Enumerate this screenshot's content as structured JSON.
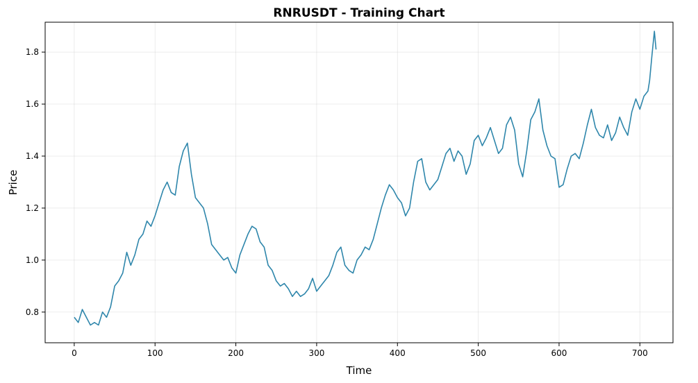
{
  "chart_data": {
    "type": "line",
    "title": "RNRUSDT - Training Chart",
    "xlabel": "Time",
    "ylabel": "Price",
    "xlim": [
      -36,
      741
    ],
    "ylim": [
      0.682,
      1.915
    ],
    "xticks": [
      0,
      100,
      200,
      300,
      400,
      500,
      600,
      700
    ],
    "yticks": [
      0.8,
      1.0,
      1.2,
      1.4,
      1.6,
      1.8
    ],
    "ytick_labels": [
      "0.8",
      "1.0",
      "1.2",
      "1.4",
      "1.6",
      "1.8"
    ],
    "grid": true,
    "line_color": "#2e86ab",
    "series": [
      {
        "x": [
          0,
          5,
          10,
          15,
          20,
          25,
          30,
          35,
          40,
          45,
          50,
          55,
          60,
          65,
          70,
          75,
          80,
          85,
          90,
          95,
          100,
          105,
          110,
          115,
          120,
          125,
          130,
          135,
          140,
          145,
          150,
          155,
          160,
          165,
          170,
          175,
          180,
          185,
          190,
          195,
          200,
          205,
          210,
          215,
          220,
          225,
          230,
          235,
          240,
          245,
          250,
          255,
          260,
          265,
          270,
          275,
          280,
          285,
          290,
          295,
          300,
          305,
          310,
          315,
          320,
          325,
          330,
          335,
          340,
          345,
          350,
          355,
          360,
          365,
          370,
          375,
          380,
          385,
          390,
          395,
          400,
          405,
          410,
          415,
          420,
          425,
          430,
          435,
          440,
          445,
          450,
          455,
          460,
          465,
          470,
          475,
          480,
          485,
          490,
          495,
          500,
          505,
          510,
          515,
          520,
          525,
          530,
          535,
          540,
          545,
          550,
          555,
          560,
          565,
          570,
          575,
          580,
          585,
          590,
          595,
          600,
          605,
          610,
          615,
          620,
          625,
          630,
          635,
          640,
          645,
          650,
          655,
          660,
          665,
          670,
          675,
          680,
          685,
          690,
          695,
          700,
          705,
          710,
          712,
          715,
          718,
          720
        ],
        "values": [
          0.78,
          0.76,
          0.81,
          0.78,
          0.75,
          0.76,
          0.75,
          0.8,
          0.78,
          0.82,
          0.9,
          0.92,
          0.95,
          1.03,
          0.98,
          1.02,
          1.08,
          1.1,
          1.15,
          1.13,
          1.17,
          1.22,
          1.27,
          1.3,
          1.26,
          1.25,
          1.36,
          1.42,
          1.45,
          1.33,
          1.24,
          1.22,
          1.2,
          1.14,
          1.06,
          1.04,
          1.02,
          1.0,
          1.01,
          0.97,
          0.95,
          1.02,
          1.06,
          1.1,
          1.13,
          1.12,
          1.07,
          1.05,
          0.98,
          0.96,
          0.92,
          0.9,
          0.91,
          0.89,
          0.86,
          0.88,
          0.86,
          0.87,
          0.89,
          0.93,
          0.88,
          0.9,
          0.92,
          0.94,
          0.98,
          1.03,
          1.05,
          0.98,
          0.96,
          0.95,
          1.0,
          1.02,
          1.05,
          1.04,
          1.08,
          1.14,
          1.2,
          1.25,
          1.29,
          1.27,
          1.24,
          1.22,
          1.17,
          1.2,
          1.3,
          1.38,
          1.39,
          1.3,
          1.27,
          1.29,
          1.31,
          1.36,
          1.41,
          1.43,
          1.38,
          1.42,
          1.4,
          1.33,
          1.37,
          1.46,
          1.48,
          1.44,
          1.47,
          1.51,
          1.46,
          1.41,
          1.43,
          1.52,
          1.55,
          1.5,
          1.37,
          1.32,
          1.42,
          1.54,
          1.57,
          1.62,
          1.5,
          1.44,
          1.4,
          1.39,
          1.28,
          1.29,
          1.35,
          1.4,
          1.41,
          1.39,
          1.45,
          1.52,
          1.58,
          1.51,
          1.48,
          1.47,
          1.52,
          1.46,
          1.49,
          1.55,
          1.51,
          1.48,
          1.57,
          1.62,
          1.58,
          1.63,
          1.65,
          1.69,
          1.79,
          1.88,
          1.81
        ]
      }
    ]
  }
}
